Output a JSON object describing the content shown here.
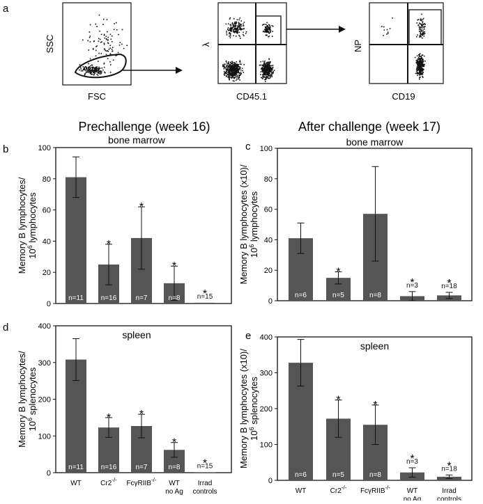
{
  "panel_letters": {
    "a": "a",
    "b": "b",
    "c": "c",
    "d": "d",
    "e": "e"
  },
  "flow": {
    "plot1": {
      "xlabel": "FSC",
      "ylabel": "SSC"
    },
    "plot2": {
      "xlabel": "CD45.1",
      "ylabel": "λ"
    },
    "plot3": {
      "xlabel": "CD19",
      "ylabel": "NP"
    }
  },
  "headings": {
    "prechallenge": "Prechallenge (week 16)",
    "after": "After challenge (week 17)"
  },
  "categories": [
    "WT",
    "Cr2",
    "FcγRIIB",
    "WT",
    "Irrad"
  ],
  "category_line2": [
    "",
    "",
    "",
    "no Ag",
    "controls"
  ],
  "category_super": [
    "",
    "-/-",
    "-/-",
    "",
    ""
  ],
  "chart_data": [
    {
      "type": "bar",
      "panel": "b",
      "subtitle": "bone marrow",
      "ylabel_line1": "Memory B lymphocytes/",
      "ylabel_line2_pre": "10",
      "ylabel_line2_sup": "6",
      "ylabel_line2_post": " lymphocytes",
      "ylim": [
        0,
        100
      ],
      "yticks": [
        0,
        20,
        40,
        60,
        80,
        100
      ],
      "values": [
        81,
        25,
        42,
        13,
        0.5
      ],
      "errors": [
        13,
        13,
        20,
        11,
        0
      ],
      "n": [
        "n=11",
        "n=16",
        "n=7",
        "n=8",
        "n=15"
      ],
      "star": [
        "",
        "*",
        "*",
        "*",
        "*"
      ]
    },
    {
      "type": "bar",
      "panel": "c",
      "subtitle": "bone marrow",
      "ylabel_line1": "Memory B lymphocytes (x10)/",
      "ylabel_line2_pre": "10",
      "ylabel_line2_sup": "6",
      "ylabel_line2_post": " lymphocytes",
      "ylim": [
        0,
        100
      ],
      "yticks": [
        0,
        20,
        40,
        60,
        80,
        100
      ],
      "values": [
        41,
        15,
        57,
        3,
        3.5
      ],
      "errors": [
        10,
        4,
        31,
        3,
        2
      ],
      "n": [
        "n=6",
        "n=5",
        "n=8",
        "n=3",
        "n=18"
      ],
      "star": [
        "",
        "*",
        "",
        "*",
        "*"
      ]
    },
    {
      "type": "bar",
      "panel": "d",
      "subtitle": "spleen",
      "ylabel_line1": "Memory B lymphocytes/",
      "ylabel_line2_pre": "10",
      "ylabel_line2_sup": "6",
      "ylabel_line2_post": " splenocytes",
      "ylim": [
        0,
        400
      ],
      "yticks": [
        0,
        100,
        200,
        300,
        400
      ],
      "values": [
        308,
        123,
        127,
        62,
        1
      ],
      "errors": [
        57,
        27,
        32,
        20,
        0
      ],
      "n": [
        "n=11",
        "n=16",
        "n=7",
        "n=8",
        "n=15"
      ],
      "star": [
        "",
        "*",
        "*",
        "*",
        "*"
      ]
    },
    {
      "type": "bar",
      "panel": "e",
      "subtitle": "spleen",
      "ylabel_line1": "Memory B lymphocytes (x10)/",
      "ylabel_line2_pre": "10",
      "ylabel_line2_sup": "6",
      "ylabel_line2_post": " splenocytes",
      "ylim": [
        0,
        400
      ],
      "yticks": [
        0,
        100,
        200,
        300,
        400
      ],
      "values": [
        328,
        172,
        155,
        22,
        10
      ],
      "errors": [
        65,
        52,
        55,
        13,
        5
      ],
      "n": [
        "n=6",
        "n=5",
        "n=8",
        "n=3",
        "n=18"
      ],
      "star": [
        "",
        "*",
        "*",
        "*",
        "*"
      ]
    }
  ]
}
